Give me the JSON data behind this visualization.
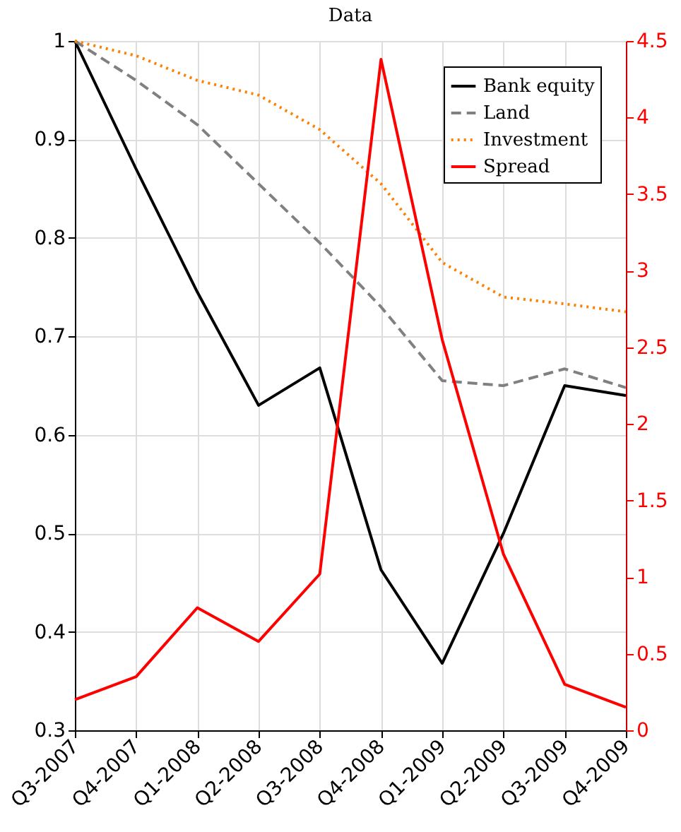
{
  "chart_data": {
    "type": "line",
    "title": "Data",
    "categories": [
      "Q3-2007",
      "Q4-2007",
      "Q1-2008",
      "Q2-2008",
      "Q3-2008",
      "Q4-2008",
      "Q1-2009",
      "Q2-2009",
      "Q3-2009",
      "Q4-2009"
    ],
    "series": [
      {
        "name": "Bank equity",
        "color": "#000000",
        "line_style": "solid",
        "values": [
          1.0,
          0.87,
          0.745,
          0.63,
          0.668,
          0.463,
          0.368,
          0.5,
          0.65,
          0.64
        ]
      },
      {
        "name": "Land",
        "color": "#808080",
        "line_style": "dashed",
        "values": [
          1.0,
          0.96,
          0.915,
          0.855,
          0.795,
          0.73,
          0.655,
          0.65,
          0.667,
          0.648
        ]
      },
      {
        "name": "Investment",
        "color": "#ff8000",
        "line_style": "dotted",
        "values": [
          1.0,
          0.985,
          0.96,
          0.945,
          0.91,
          0.855,
          0.775,
          0.74,
          0.733,
          0.725
        ]
      },
      {
        "name": "Spread",
        "color": "#ff0000",
        "line_style": "solid",
        "axis": "y2",
        "values": [
          0.2,
          0.35,
          0.8,
          0.58,
          1.02,
          4.38,
          2.55,
          1.15,
          0.3,
          0.15
        ]
      }
    ],
    "ylim": [
      0.3,
      1
    ],
    "yticks": [
      0.3,
      0.4,
      0.5,
      0.6,
      0.7,
      0.8,
      0.9,
      1
    ],
    "y2lim": [
      0,
      4.5
    ],
    "y2ticks": [
      0,
      0.5,
      1,
      1.5,
      2,
      2.5,
      3,
      3.5,
      4,
      4.5
    ],
    "grid": true,
    "legend": "top right",
    "marker": "none"
  }
}
